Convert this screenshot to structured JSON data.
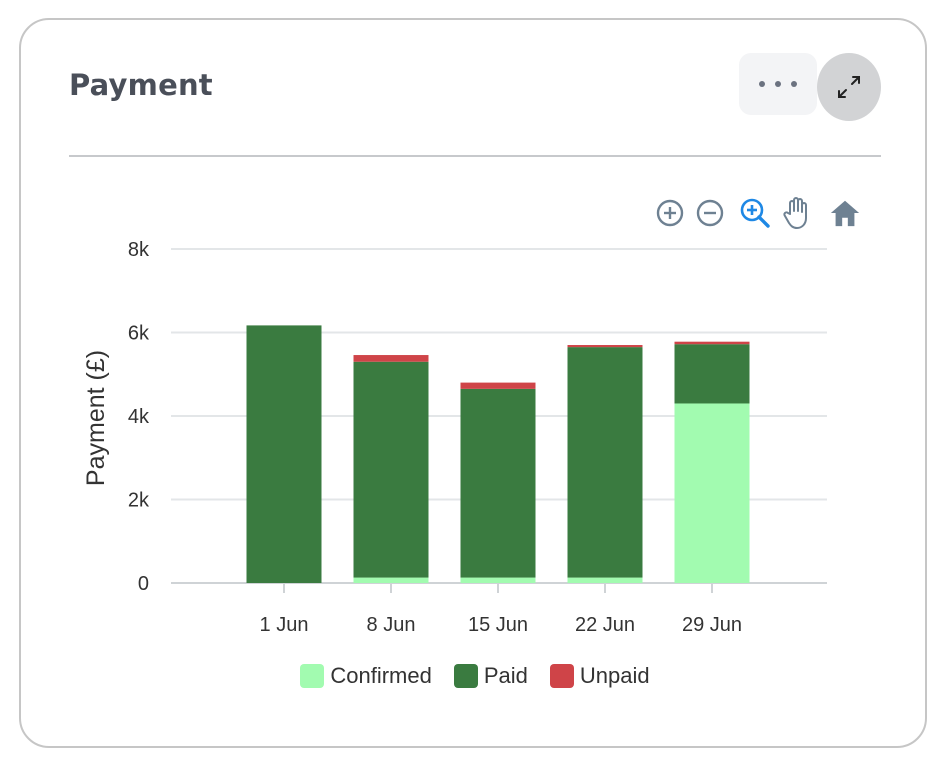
{
  "card": {
    "title": "Payment"
  },
  "toolbar": {
    "zoom_in_icon": "zoom-in-icon",
    "zoom_out_icon": "zoom-out-icon",
    "zoom_select_icon": "magnifier-zoom-icon",
    "pan_icon": "hand-pan-icon",
    "reset_icon": "home-icon"
  },
  "colors": {
    "confirmed": "#a2fbb0",
    "paid": "#3a7b40",
    "unpaid": "#cf4448",
    "toolbar_icon": "#6e8192",
    "toolbar_active": "#1e88e5"
  },
  "chart_data": {
    "type": "bar",
    "stacked": true,
    "categories": [
      "1 Jun",
      "8 Jun",
      "15 Jun",
      "22 Jun",
      "29 Jun"
    ],
    "series": [
      {
        "name": "Confirmed",
        "values": [
          0,
          130,
          130,
          130,
          4300
        ]
      },
      {
        "name": "Paid",
        "values": [
          6170,
          5170,
          4520,
          5520,
          1420
        ]
      },
      {
        "name": "Unpaid",
        "values": [
          0,
          160,
          150,
          50,
          60
        ]
      }
    ],
    "ylabel": "Payment (£)",
    "xlabel": "",
    "ylim": [
      0,
      8000
    ],
    "yticks": [
      "0",
      "2k",
      "4k",
      "6k",
      "8k"
    ],
    "ytick_values": [
      0,
      2000,
      4000,
      6000,
      8000
    ],
    "grid": true,
    "legend": "bottom-center"
  }
}
